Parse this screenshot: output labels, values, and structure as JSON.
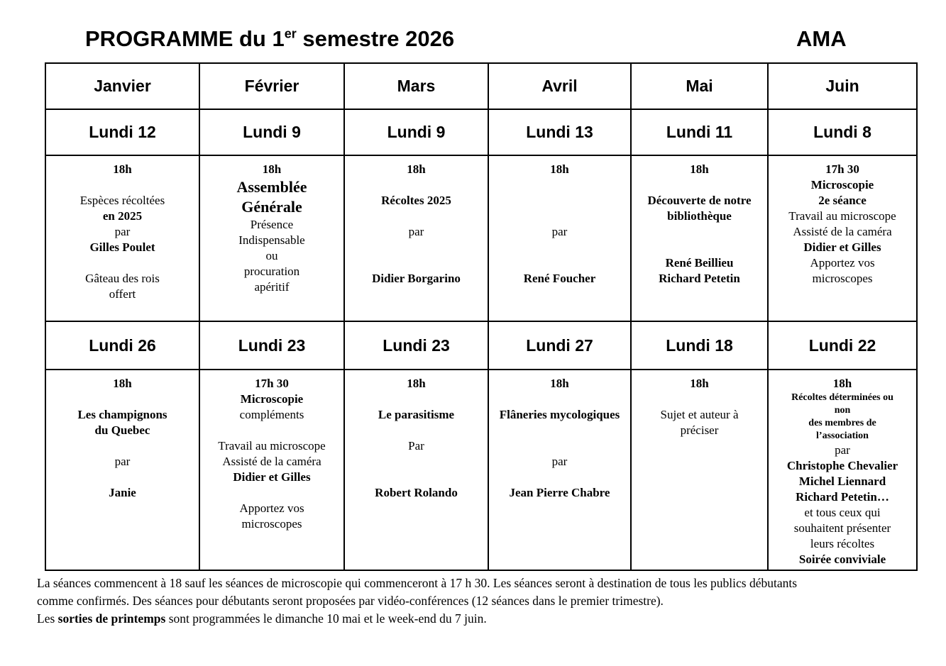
{
  "page": {
    "title_main": "PROGRAMME du 1",
    "title_sup": "er",
    "title_tail": " semestre 2026",
    "org": "AMA"
  },
  "columns": [
    {
      "month": "Janvier",
      "s1": {
        "date": "Lundi 12",
        "lines": [
          {
            "t": "18h",
            "b": true
          },
          {
            "t": ""
          },
          {
            "t": "Espèces récoltées"
          },
          {
            "t": "en 2025",
            "b": true
          },
          {
            "t": "par"
          },
          {
            "t": "Gilles Poulet",
            "b": true
          },
          {
            "t": ""
          },
          {
            "t": "Gâteau des rois"
          },
          {
            "t": "offert"
          }
        ]
      },
      "s2": {
        "date": "Lundi 26",
        "lines": [
          {
            "t": "18h",
            "b": true
          },
          {
            "t": ""
          },
          {
            "t": "Les champignons",
            "b": true
          },
          {
            "t": "du Quebec",
            "b": true
          },
          {
            "t": ""
          },
          {
            "t": "par"
          },
          {
            "t": ""
          },
          {
            "t": "Janie",
            "b": true
          }
        ]
      }
    },
    {
      "month": "Février",
      "s1": {
        "date": "Lundi 9",
        "lines": [
          {
            "t": "18h",
            "b": true
          },
          {
            "t": "Assemblée",
            "b": true,
            "s": "lg"
          },
          {
            "t": "Générale",
            "b": true,
            "s": "lg"
          },
          {
            "t": "Présence"
          },
          {
            "t": "Indispensable"
          },
          {
            "t": "ou"
          },
          {
            "t": "procuration"
          },
          {
            "t": "apéritif"
          }
        ]
      },
      "s2": {
        "date": "Lundi 23",
        "lines": [
          {
            "t": "17h 30",
            "b": true
          },
          {
            "t": "Microscopie",
            "b": true
          },
          {
            "t": "compléments"
          },
          {
            "t": ""
          },
          {
            "t": "Travail au microscope"
          },
          {
            "t": "Assisté de la caméra"
          },
          {
            "t": "Didier et Gilles",
            "b": true
          },
          {
            "t": ""
          },
          {
            "t": "Apportez vos"
          },
          {
            "t": "microscopes"
          }
        ]
      }
    },
    {
      "month": "Mars",
      "s1": {
        "date": "Lundi 9",
        "lines": [
          {
            "t": "18h",
            "b": true
          },
          {
            "t": ""
          },
          {
            "t": "Récoltes 2025",
            "b": true
          },
          {
            "t": ""
          },
          {
            "t": "par"
          },
          {
            "t": ""
          },
          {
            "t": ""
          },
          {
            "t": "Didier Borgarino",
            "b": true
          }
        ]
      },
      "s2": {
        "date": "Lundi 23",
        "lines": [
          {
            "t": "18h",
            "b": true
          },
          {
            "t": ""
          },
          {
            "t": "Le parasitisme",
            "b": true
          },
          {
            "t": ""
          },
          {
            "t": "Par"
          },
          {
            "t": ""
          },
          {
            "t": ""
          },
          {
            "t": "Robert Rolando",
            "b": true
          }
        ]
      }
    },
    {
      "month": "Avril",
      "s1": {
        "date": "Lundi 13",
        "lines": [
          {
            "t": "18h",
            "b": true
          },
          {
            "t": ""
          },
          {
            "t": ""
          },
          {
            "t": ""
          },
          {
            "t": "par"
          },
          {
            "t": ""
          },
          {
            "t": ""
          },
          {
            "t": "René Foucher",
            "b": true
          }
        ]
      },
      "s2": {
        "date": "Lundi 27",
        "lines": [
          {
            "t": "18h",
            "b": true
          },
          {
            "t": ""
          },
          {
            "t": "Flâneries mycologiques",
            "b": true
          },
          {
            "t": ""
          },
          {
            "t": ""
          },
          {
            "t": "par"
          },
          {
            "t": ""
          },
          {
            "t": "Jean Pierre Chabre",
            "b": true
          }
        ]
      }
    },
    {
      "month": "Mai",
      "s1": {
        "date": "Lundi 11",
        "lines": [
          {
            "t": "18h",
            "b": true
          },
          {
            "t": ""
          },
          {
            "t": "Découverte de notre",
            "b": true
          },
          {
            "t": "bibliothèque",
            "b": true
          },
          {
            "t": ""
          },
          {
            "t": ""
          },
          {
            "t": "René Beillieu",
            "b": true
          },
          {
            "t": "Richard Petetin",
            "b": true
          }
        ]
      },
      "s2": {
        "date": "Lundi 18",
        "lines": [
          {
            "t": "18h",
            "b": true
          },
          {
            "t": ""
          },
          {
            "t": "Sujet et auteur à"
          },
          {
            "t": "préciser"
          }
        ]
      }
    },
    {
      "month": "Juin",
      "s1": {
        "date": "Lundi 8",
        "lines": [
          {
            "t": "17h 30",
            "b": true
          },
          {
            "t": "Microscopie",
            "b": true
          },
          {
            "t": "2e séance",
            "b": true
          },
          {
            "t": "Travail au microscope"
          },
          {
            "t": "Assisté de la caméra"
          },
          {
            "t": "Didier et Gilles",
            "b": true
          },
          {
            "t": "Apportez vos"
          },
          {
            "t": "microscopes"
          }
        ]
      },
      "s2": {
        "date": "Lundi 22",
        "lines": [
          {
            "t": "18h",
            "b": true
          },
          {
            "t": "Récoltes déterminées ou",
            "b": true,
            "s": "sm"
          },
          {
            "t": "non",
            "b": true,
            "s": "sm"
          },
          {
            "t": "des membres de",
            "b": true,
            "s": "sm"
          },
          {
            "t": "l’association",
            "b": true,
            "s": "sm"
          },
          {
            "t": "par"
          },
          {
            "t": "Christophe Chevalier",
            "b": true
          },
          {
            "t": "Michel Liennard",
            "b": true
          },
          {
            "t": "Richard Petetin…",
            "b": true
          },
          {
            "t": "et tous ceux qui"
          },
          {
            "t": "souhaitent présenter"
          },
          {
            "t": "leurs récoltes"
          },
          {
            "t": "Soirée conviviale",
            "b": true
          }
        ]
      }
    }
  ],
  "footer": {
    "line1": "La séances commencent à 18 sauf les séances de microscopie qui commenceront à 17 h 30. Les séances seront à destination de tous les publics débutants",
    "line2": "comme confirmés. Des séances pour débutants seront proposées par vidéo-conférences (12 séances dans le premier trimestre).",
    "line3_prefix": "Les ",
    "line3_bold": "sorties de printemps",
    "line3_suffix": " sont programmées le dimanche 10 mai et le week-end du 7 juin."
  }
}
